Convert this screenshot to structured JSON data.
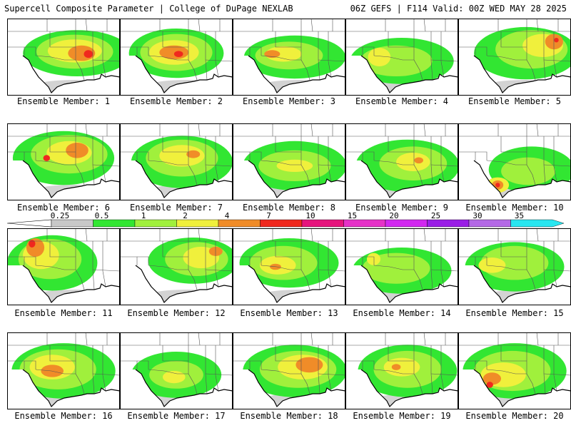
{
  "header": {
    "left": "Supercell Composite Parameter | College of DuPage NEXLAB",
    "right": "06Z GEFS | F114 Valid: 00Z WED MAY 28 2025"
  },
  "legend": {
    "levels": [
      "0.25",
      "0.5",
      "1",
      "2",
      "4",
      "7",
      "10",
      "15",
      "20",
      "25",
      "30",
      "35"
    ],
    "colors": [
      "#c8c8c8",
      "#32e632",
      "#a0f03c",
      "#f0f03c",
      "#f08c28",
      "#f0281e",
      "#e6147d",
      "#e632c8",
      "#d228f0",
      "#9a1ee6",
      "#b469e6",
      "#28e6f0"
    ]
  },
  "panels": [
    {
      "label": "Ensemble Member: 1",
      "blobs": [
        [
          "#32e632",
          0.62,
          0.45,
          0.48,
          0.3
        ],
        [
          "#a0f03c",
          0.6,
          0.43,
          0.34,
          0.22
        ],
        [
          "#f0f03c",
          0.6,
          0.42,
          0.24,
          0.15
        ],
        [
          "#f08c28",
          0.66,
          0.45,
          0.12,
          0.1
        ],
        [
          "#f0281e",
          0.72,
          0.46,
          0.04,
          0.05
        ]
      ]
    },
    {
      "label": "Ensemble Member: 2",
      "blobs": [
        [
          "#32e632",
          0.5,
          0.45,
          0.42,
          0.32
        ],
        [
          "#a0f03c",
          0.5,
          0.44,
          0.32,
          0.24
        ],
        [
          "#f0f03c",
          0.48,
          0.44,
          0.22,
          0.16
        ],
        [
          "#f08c28",
          0.48,
          0.44,
          0.13,
          0.09
        ],
        [
          "#f0281e",
          0.52,
          0.46,
          0.04,
          0.04
        ]
      ]
    },
    {
      "label": "Ensemble Member: 3",
      "blobs": [
        [
          "#32e632",
          0.55,
          0.5,
          0.45,
          0.28
        ],
        [
          "#a0f03c",
          0.5,
          0.48,
          0.3,
          0.18
        ],
        [
          "#f0f03c",
          0.45,
          0.46,
          0.16,
          0.1
        ],
        [
          "#f08c28",
          0.35,
          0.46,
          0.07,
          0.05
        ]
      ]
    },
    {
      "label": "Ensemble Member: 4",
      "blobs": [
        [
          "#32e632",
          0.5,
          0.55,
          0.46,
          0.3
        ],
        [
          "#a0f03c",
          0.45,
          0.55,
          0.32,
          0.2
        ],
        [
          "#f0f03c",
          0.3,
          0.5,
          0.1,
          0.12
        ]
      ]
    },
    {
      "label": "Ensemble Member: 5",
      "blobs": [
        [
          "#32e632",
          0.6,
          0.45,
          0.46,
          0.34
        ],
        [
          "#a0f03c",
          0.65,
          0.4,
          0.32,
          0.25
        ],
        [
          "#f0f03c",
          0.75,
          0.35,
          0.18,
          0.15
        ],
        [
          "#f08c28",
          0.85,
          0.3,
          0.08,
          0.1
        ],
        [
          "#f0281e",
          0.87,
          0.28,
          0.02,
          0.03
        ]
      ]
    },
    {
      "label": "Ensemble Member: 6",
      "blobs": [
        [
          "#32e632",
          0.5,
          0.45,
          0.45,
          0.35
        ],
        [
          "#a0f03c",
          0.55,
          0.4,
          0.34,
          0.25
        ],
        [
          "#f0f03c",
          0.55,
          0.38,
          0.2,
          0.15
        ],
        [
          "#f08c28",
          0.62,
          0.35,
          0.1,
          0.1
        ],
        [
          "#f0281e",
          0.35,
          0.45,
          0.03,
          0.04
        ]
      ]
    },
    {
      "label": "Ensemble Member: 7",
      "blobs": [
        [
          "#32e632",
          0.55,
          0.5,
          0.45,
          0.34
        ],
        [
          "#a0f03c",
          0.55,
          0.45,
          0.32,
          0.24
        ],
        [
          "#f0f03c",
          0.55,
          0.42,
          0.2,
          0.14
        ],
        [
          "#f08c28",
          0.65,
          0.4,
          0.06,
          0.05
        ]
      ]
    },
    {
      "label": "Ensemble Member: 8",
      "blobs": [
        [
          "#32e632",
          0.55,
          0.55,
          0.46,
          0.32
        ],
        [
          "#a0f03c",
          0.55,
          0.55,
          0.32,
          0.2
        ],
        [
          "#f0f03c",
          0.55,
          0.55,
          0.16,
          0.08
        ]
      ]
    },
    {
      "label": "Ensemble Member: 9",
      "blobs": [
        [
          "#32e632",
          0.55,
          0.55,
          0.46,
          0.34
        ],
        [
          "#a0f03c",
          0.6,
          0.52,
          0.3,
          0.22
        ],
        [
          "#f0f03c",
          0.6,
          0.5,
          0.15,
          0.12
        ],
        [
          "#f08c28",
          0.65,
          0.48,
          0.04,
          0.04
        ]
      ]
    },
    {
      "label": "Ensemble Member: 10",
      "blobs": [
        [
          "#32e632",
          0.65,
          0.6,
          0.38,
          0.3
        ],
        [
          "#a0f03c",
          0.62,
          0.62,
          0.24,
          0.18
        ],
        [
          "#f0f03c",
          0.35,
          0.8,
          0.1,
          0.1
        ],
        [
          "#f08c28",
          0.35,
          0.8,
          0.05,
          0.06
        ],
        [
          "#f0281e",
          0.35,
          0.8,
          0.02,
          0.03
        ]
      ]
    },
    {
      "label": "Ensemble Member: 11",
      "blobs": [
        [
          "#32e632",
          0.4,
          0.45,
          0.4,
          0.36
        ],
        [
          "#a0f03c",
          0.38,
          0.4,
          0.28,
          0.26
        ],
        [
          "#f0f03c",
          0.3,
          0.35,
          0.16,
          0.18
        ],
        [
          "#f08c28",
          0.25,
          0.25,
          0.08,
          0.12
        ],
        [
          "#f0281e",
          0.22,
          0.2,
          0.03,
          0.05
        ]
      ]
    },
    {
      "label": "Ensemble Member: 12",
      "blobs": [
        [
          "#32e632",
          0.65,
          0.42,
          0.4,
          0.3
        ],
        [
          "#a0f03c",
          0.68,
          0.4,
          0.28,
          0.22
        ],
        [
          "#f0f03c",
          0.72,
          0.38,
          0.16,
          0.14
        ],
        [
          "#f08c28",
          0.85,
          0.3,
          0.06,
          0.06
        ]
      ]
    },
    {
      "label": "Ensemble Member: 13",
      "blobs": [
        [
          "#32e632",
          0.5,
          0.45,
          0.44,
          0.32
        ],
        [
          "#a0f03c",
          0.45,
          0.45,
          0.3,
          0.22
        ],
        [
          "#f0f03c",
          0.4,
          0.48,
          0.16,
          0.12
        ],
        [
          "#f08c28",
          0.38,
          0.5,
          0.05,
          0.04
        ]
      ]
    },
    {
      "label": "Ensemble Member: 14",
      "blobs": [
        [
          "#32e632",
          0.5,
          0.55,
          0.44,
          0.3
        ],
        [
          "#a0f03c",
          0.45,
          0.52,
          0.3,
          0.2
        ],
        [
          "#f0f03c",
          0.25,
          0.4,
          0.06,
          0.08
        ]
      ]
    },
    {
      "label": "Ensemble Member: 15",
      "blobs": [
        [
          "#32e632",
          0.5,
          0.5,
          0.44,
          0.32
        ],
        [
          "#a0f03c",
          0.5,
          0.45,
          0.3,
          0.22
        ],
        [
          "#f0f03c",
          0.3,
          0.48,
          0.12,
          0.1
        ]
      ]
    },
    {
      "label": "Ensemble Member: 16",
      "blobs": [
        [
          "#32e632",
          0.5,
          0.5,
          0.46,
          0.36
        ],
        [
          "#a0f03c",
          0.45,
          0.48,
          0.34,
          0.26
        ],
        [
          "#f0f03c",
          0.4,
          0.45,
          0.2,
          0.16
        ],
        [
          "#f08c28",
          0.4,
          0.5,
          0.1,
          0.08
        ]
      ]
    },
    {
      "label": "Ensemble Member: 17",
      "blobs": [
        [
          "#32e632",
          0.5,
          0.55,
          0.4,
          0.3
        ],
        [
          "#a0f03c",
          0.5,
          0.55,
          0.24,
          0.18
        ],
        [
          "#f0f03c",
          0.48,
          0.58,
          0.1,
          0.08
        ]
      ]
    },
    {
      "label": "Ensemble Member: 18",
      "blobs": [
        [
          "#32e632",
          0.55,
          0.5,
          0.46,
          0.34
        ],
        [
          "#a0f03c",
          0.58,
          0.48,
          0.34,
          0.24
        ],
        [
          "#f0f03c",
          0.62,
          0.45,
          0.22,
          0.16
        ],
        [
          "#f08c28",
          0.68,
          0.42,
          0.12,
          0.1
        ]
      ]
    },
    {
      "label": "Ensemble Member: 19",
      "blobs": [
        [
          "#32e632",
          0.55,
          0.5,
          0.44,
          0.34
        ],
        [
          "#a0f03c",
          0.55,
          0.48,
          0.3,
          0.24
        ],
        [
          "#f0f03c",
          0.5,
          0.45,
          0.16,
          0.12
        ],
        [
          "#f08c28",
          0.45,
          0.45,
          0.04,
          0.04
        ]
      ]
    },
    {
      "label": "Ensemble Member: 20",
      "blobs": [
        [
          "#32e632",
          0.5,
          0.5,
          0.46,
          0.36
        ],
        [
          "#a0f03c",
          0.48,
          0.5,
          0.34,
          0.26
        ],
        [
          "#f0f03c",
          0.4,
          0.55,
          0.2,
          0.16
        ],
        [
          "#f08c28",
          0.3,
          0.6,
          0.08,
          0.08
        ],
        [
          "#f0281e",
          0.28,
          0.68,
          0.03,
          0.04
        ]
      ]
    }
  ]
}
